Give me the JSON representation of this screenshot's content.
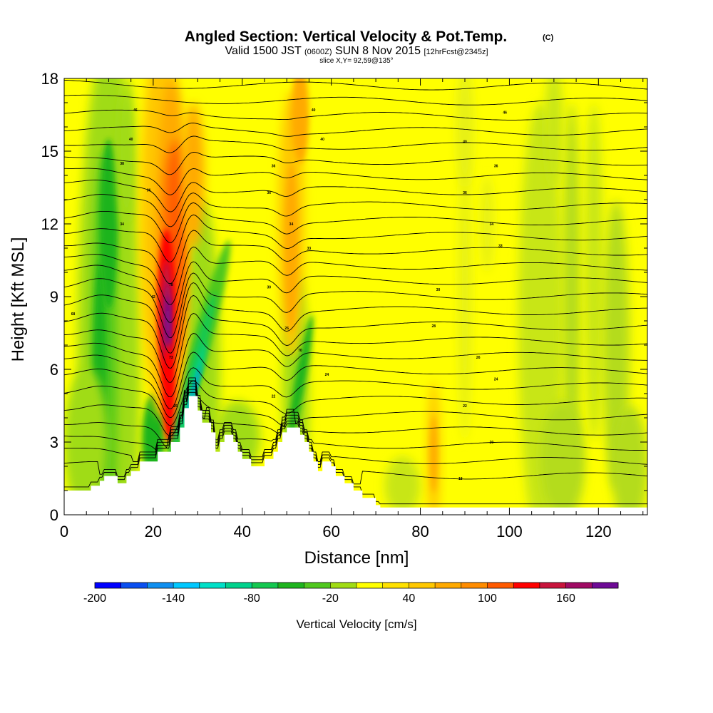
{
  "chart_data": {
    "type": "heatmap",
    "title": "Angled Section: Vertical Velocity & Pot.Temp.",
    "title_suffix": "(C)",
    "subtitle_parts": [
      "Valid 1500 JST ",
      "(0600Z)",
      " SUN 8 Nov 2015 ",
      "[12hrFcst@2345z]"
    ],
    "slice_label": "slice X,Y= 92,59@135°",
    "xlabel": "Distance [nm]",
    "ylabel": "Height [Kft MSL]",
    "xlim": [
      0,
      131
    ],
    "ylim": [
      0,
      18
    ],
    "xticks": [
      0,
      20,
      40,
      60,
      80,
      100,
      120
    ],
    "yticks": [
      0,
      3,
      6,
      9,
      12,
      15,
      18
    ],
    "colorbar": {
      "label": "Vertical Velocity [cm/s]",
      "min": -200,
      "max": 200,
      "step": 20,
      "tick_values": [
        -200,
        -140,
        -80,
        -20,
        40,
        100,
        160
      ],
      "colors": [
        "#0000ff",
        "#0a4ff0",
        "#0f8ff0",
        "#00c8ff",
        "#00e0c8",
        "#00d28c",
        "#14c850",
        "#1eb41e",
        "#50c81e",
        "#a0dc14",
        "#ffff00",
        "#ffe100",
        "#ffc800",
        "#ffaa00",
        "#ff8c00",
        "#ff5a00",
        "#ff0000",
        "#c8143c",
        "#a00a64",
        "#6e0a96"
      ]
    },
    "terrain": [
      [
        0,
        1.0
      ],
      [
        3,
        1.0
      ],
      [
        6,
        1.0
      ],
      [
        6,
        1.2
      ],
      [
        8,
        1.2
      ],
      [
        8,
        1.4
      ],
      [
        9,
        1.4
      ],
      [
        9,
        1.6
      ],
      [
        12,
        1.6
      ],
      [
        12,
        1.3
      ],
      [
        14,
        1.3
      ],
      [
        14,
        1.6
      ],
      [
        15,
        1.6
      ],
      [
        15,
        1.8
      ],
      [
        17,
        1.8
      ],
      [
        17,
        2.2
      ],
      [
        21,
        2.2
      ],
      [
        21,
        2.6
      ],
      [
        24,
        2.6
      ],
      [
        24,
        3.0
      ],
      [
        26,
        3.0
      ],
      [
        26,
        3.6
      ],
      [
        27,
        3.6
      ],
      [
        27,
        4.4
      ],
      [
        28,
        4.4
      ],
      [
        28,
        4.9
      ],
      [
        30,
        4.9
      ],
      [
        30,
        4.3
      ],
      [
        31,
        4.3
      ],
      [
        31,
        3.8
      ],
      [
        33,
        3.8
      ],
      [
        33,
        3.4
      ],
      [
        34,
        3.4
      ],
      [
        34,
        2.6
      ],
      [
        35,
        2.6
      ],
      [
        35,
        3.0
      ],
      [
        36,
        3.0
      ],
      [
        36,
        3.3
      ],
      [
        38,
        3.3
      ],
      [
        38,
        3.0
      ],
      [
        39,
        3.0
      ],
      [
        39,
        2.6
      ],
      [
        40,
        2.6
      ],
      [
        40,
        2.3
      ],
      [
        42,
        2.3
      ],
      [
        42,
        2.0
      ],
      [
        45,
        2.0
      ],
      [
        45,
        2.3
      ],
      [
        47,
        2.3
      ],
      [
        47,
        2.6
      ],
      [
        48,
        2.6
      ],
      [
        48,
        3.0
      ],
      [
        49,
        3.0
      ],
      [
        49,
        3.4
      ],
      [
        50,
        3.4
      ],
      [
        50,
        3.6
      ],
      [
        53,
        3.6
      ],
      [
        53,
        3.3
      ],
      [
        54,
        3.3
      ],
      [
        54,
        3.0
      ],
      [
        55,
        3.0
      ],
      [
        55,
        2.6
      ],
      [
        56,
        2.6
      ],
      [
        56,
        2.2
      ],
      [
        57,
        2.2
      ],
      [
        57,
        1.8
      ],
      [
        58,
        1.8
      ],
      [
        58,
        2.2
      ],
      [
        60,
        2.2
      ],
      [
        60,
        2.0
      ],
      [
        61,
        2.0
      ],
      [
        61,
        1.6
      ],
      [
        63,
        1.6
      ],
      [
        63,
        1.3
      ],
      [
        65,
        1.3
      ],
      [
        65,
        1.0
      ],
      [
        67,
        1.0
      ],
      [
        67,
        0.7
      ],
      [
        70,
        0.7
      ],
      [
        70,
        0.4
      ],
      [
        71,
        0.4
      ],
      [
        71,
        0.3
      ],
      [
        131,
        0.3
      ]
    ],
    "isentrope_labels": [
      {
        "x": 16,
        "y": 16.7,
        "v": "46"
      },
      {
        "x": 15,
        "y": 15.5,
        "v": "40"
      },
      {
        "x": 13,
        "y": 14.5,
        "v": "38"
      },
      {
        "x": 19,
        "y": 13.4,
        "v": "36"
      },
      {
        "x": 13,
        "y": 12.0,
        "v": "34"
      },
      {
        "x": 20,
        "y": 9.0,
        "v": "42"
      },
      {
        "x": 24,
        "y": 9.5,
        "v": "78"
      },
      {
        "x": 24,
        "y": 6.5,
        "v": "73"
      },
      {
        "x": 25,
        "y": 4.5,
        "v": "25"
      },
      {
        "x": 2,
        "y": 8.3,
        "v": "68"
      },
      {
        "x": 47,
        "y": 14.4,
        "v": "36"
      },
      {
        "x": 46,
        "y": 13.3,
        "v": "36"
      },
      {
        "x": 51,
        "y": 12.0,
        "v": "34"
      },
      {
        "x": 55,
        "y": 11.0,
        "v": "33"
      },
      {
        "x": 46,
        "y": 9.4,
        "v": "30"
      },
      {
        "x": 50,
        "y": 7.7,
        "v": "26"
      },
      {
        "x": 53,
        "y": 6.8,
        "v": "70"
      },
      {
        "x": 59,
        "y": 5.8,
        "v": "24"
      },
      {
        "x": 47,
        "y": 4.9,
        "v": "22"
      },
      {
        "x": 49,
        "y": 3.7,
        "v": "20"
      },
      {
        "x": 56,
        "y": 16.7,
        "v": "40"
      },
      {
        "x": 58,
        "y": 15.5,
        "v": "40"
      },
      {
        "x": 90,
        "y": 15.4,
        "v": "40"
      },
      {
        "x": 99,
        "y": 16.6,
        "v": "46"
      },
      {
        "x": 97,
        "y": 14.4,
        "v": "36"
      },
      {
        "x": 90,
        "y": 13.3,
        "v": "36"
      },
      {
        "x": 96,
        "y": 12.0,
        "v": "34"
      },
      {
        "x": 98,
        "y": 11.1,
        "v": "33"
      },
      {
        "x": 84,
        "y": 9.3,
        "v": "30"
      },
      {
        "x": 83,
        "y": 7.8,
        "v": "28"
      },
      {
        "x": 93,
        "y": 6.5,
        "v": "26"
      },
      {
        "x": 97,
        "y": 5.6,
        "v": "24"
      },
      {
        "x": 90,
        "y": 4.5,
        "v": "22"
      },
      {
        "x": 96,
        "y": 3.0,
        "v": "20"
      },
      {
        "x": 89,
        "y": 1.5,
        "v": "18"
      }
    ]
  }
}
